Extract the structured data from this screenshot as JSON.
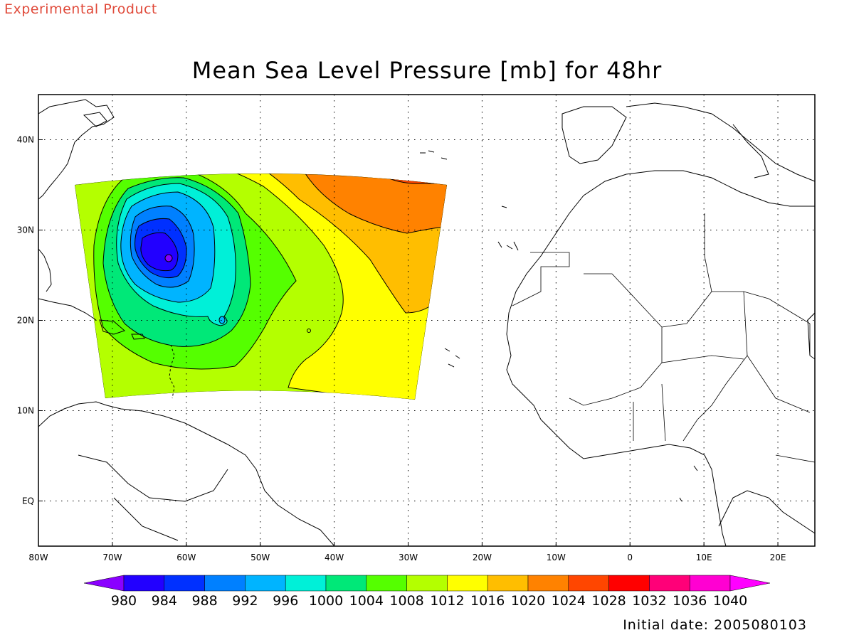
{
  "header": {
    "product_label": "Experimental Product"
  },
  "title": "Mean Sea Level Pressure [mb] for 48hr",
  "footer": {
    "initial_date": "Initial date: 2005080103"
  },
  "map": {
    "lon_ticks": [
      "80W",
      "70W",
      "60W",
      "50W",
      "40W",
      "30W",
      "20W",
      "10W",
      "0",
      "10E",
      "20E"
    ],
    "lat_ticks": [
      "40N",
      "30N",
      "20N",
      "10N",
      "EQ"
    ],
    "lon_range": [
      -80,
      25
    ],
    "lat_range": [
      -5,
      45
    ],
    "grid": "dotted",
    "low_center": {
      "lon": -62,
      "lat": 27
    },
    "colorbar": {
      "levels": [
        "980",
        "984",
        "988",
        "992",
        "996",
        "1000",
        "1004",
        "1008",
        "1012",
        "1016",
        "1020",
        "1024",
        "1028",
        "1032",
        "1036",
        "1040"
      ],
      "colors": [
        "#8a00ff",
        "#2200ff",
        "#0030ff",
        "#0080ff",
        "#00b4ff",
        "#00f0d8",
        "#00e878",
        "#55ff00",
        "#b4ff00",
        "#ffff00",
        "#ffbe00",
        "#ff8200",
        "#ff4600",
        "#ff0000",
        "#ff0078",
        "#ff00d2",
        "#ff00ff"
      ]
    }
  }
}
